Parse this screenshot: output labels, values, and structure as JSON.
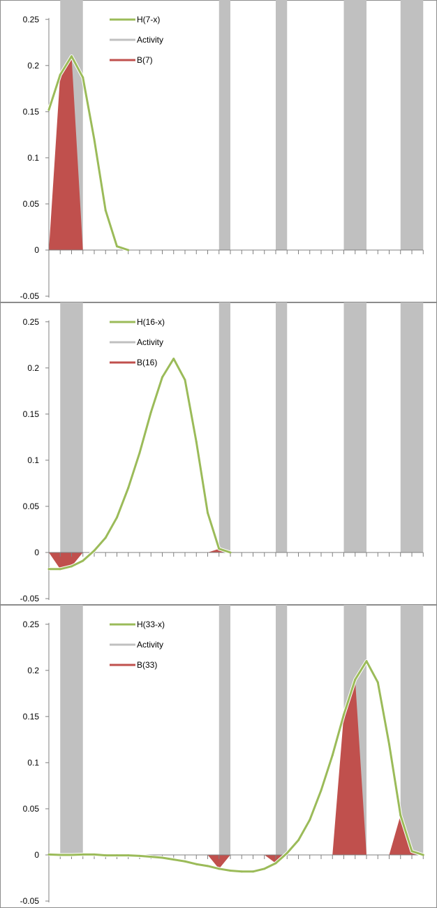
{
  "colors": {
    "hline": "#9bbb59",
    "activity": "#c0c0c0",
    "bfill": "#c0504d",
    "axis": "#808080",
    "frame": "#8c8c8c"
  },
  "chart_data": [
    {
      "type": "line",
      "legend": [
        "H(7-x)",
        "Activity",
        "B(7)"
      ],
      "legend_position": "top-left",
      "ylim": [
        -0.05,
        0.25
      ],
      "yticks": [
        "0.25",
        "0.2",
        "0.15",
        "0.1",
        "0.05",
        "0",
        "-0.05"
      ],
      "ytick_values": [
        0.25,
        0.2,
        0.15,
        0.1,
        0.05,
        0,
        -0.05
      ],
      "x_count": 34,
      "activity_ranges": [
        [
          1,
          2
        ],
        [
          15,
          15
        ],
        [
          20,
          20
        ],
        [
          26,
          27
        ],
        [
          31,
          32
        ]
      ],
      "series": [
        {
          "name": "H(7-x)",
          "values": [
            0.152,
            0.19,
            0.21,
            0.187,
            0.12,
            0.043,
            0.004,
            0.0,
            null,
            null,
            null,
            null,
            null,
            null,
            null,
            null,
            null,
            null,
            null,
            null,
            null,
            null,
            null,
            null,
            null,
            null,
            null,
            null,
            null,
            null,
            null,
            null,
            null,
            null
          ]
        },
        {
          "name": "B(7)",
          "values": [
            0,
            0.19,
            0.21,
            0,
            0,
            0,
            0,
            0,
            0,
            0,
            0,
            0,
            0,
            0,
            0,
            0,
            0,
            0,
            0,
            0,
            0,
            0,
            0,
            0,
            0,
            0,
            0,
            0,
            0,
            0,
            0,
            0,
            0,
            0
          ]
        }
      ],
      "grid": false
    },
    {
      "type": "line",
      "legend": [
        "H(16-x)",
        "Activity",
        "B(16)"
      ],
      "legend_position": "top-left",
      "ylim": [
        -0.05,
        0.25
      ],
      "yticks": [
        "0.25",
        "0.2",
        "0.15",
        "0.1",
        "0.05",
        "0",
        "-0.05"
      ],
      "ytick_values": [
        0.25,
        0.2,
        0.15,
        0.1,
        0.05,
        0,
        -0.05
      ],
      "x_count": 34,
      "activity_ranges": [
        [
          1,
          2
        ],
        [
          15,
          15
        ],
        [
          20,
          20
        ],
        [
          26,
          27
        ],
        [
          31,
          32
        ]
      ],
      "series": [
        {
          "name": "H(16-x)",
          "values": [
            -0.018,
            -0.018,
            -0.015,
            -0.009,
            0.002,
            0.016,
            0.038,
            0.07,
            0.108,
            0.152,
            0.19,
            0.21,
            0.187,
            0.12,
            0.043,
            0.004,
            0.0,
            null,
            null,
            null,
            null,
            null,
            null,
            null,
            null,
            null,
            null,
            null,
            null,
            null,
            null,
            null,
            null,
            null
          ]
        },
        {
          "name": "B(16)",
          "values": [
            0,
            -0.018,
            -0.015,
            0,
            0,
            0,
            0,
            0,
            0,
            0,
            0,
            0,
            0,
            0,
            0,
            0.004,
            0,
            0,
            0,
            0,
            0,
            0,
            0,
            0,
            0,
            0,
            0,
            0,
            0,
            0,
            0,
            0,
            0,
            0
          ]
        }
      ],
      "grid": false
    },
    {
      "type": "line",
      "legend": [
        "H(33-x)",
        "Activity",
        "B(33)"
      ],
      "legend_position": "top-left",
      "ylim": [
        -0.05,
        0.25
      ],
      "yticks": [
        "0.25",
        "0.2",
        "0.15",
        "0.1",
        "0.05",
        "0",
        "-0.05"
      ],
      "ytick_values": [
        0.25,
        0.2,
        0.15,
        0.1,
        0.05,
        0,
        -0.05
      ],
      "x_count": 34,
      "activity_ranges": [
        [
          1,
          2
        ],
        [
          15,
          15
        ],
        [
          20,
          20
        ],
        [
          26,
          27
        ],
        [
          31,
          32
        ]
      ],
      "series": [
        {
          "name": "H(33-x)",
          "values": [
            0.0005,
            0.0,
            0.0,
            0.0005,
            0.0005,
            -0.0005,
            -0.0005,
            -0.0005,
            -0.001,
            -0.002,
            -0.003,
            -0.005,
            -0.007,
            -0.01,
            -0.012,
            -0.015,
            -0.017,
            -0.018,
            -0.018,
            -0.015,
            -0.009,
            0.002,
            0.016,
            0.038,
            0.07,
            0.108,
            0.152,
            0.19,
            0.21,
            0.187,
            0.12,
            0.043,
            0.004,
            0.0
          ]
        },
        {
          "name": "B(33)",
          "values": [
            0,
            0,
            0,
            0,
            0,
            0,
            0,
            0,
            0,
            0,
            0,
            0,
            0,
            0,
            0,
            -0.015,
            0,
            0,
            0,
            0,
            -0.009,
            0,
            0,
            0,
            0,
            0,
            0.152,
            0.19,
            0,
            0,
            0,
            0.043,
            0.004,
            0
          ]
        }
      ],
      "grid": false
    }
  ]
}
